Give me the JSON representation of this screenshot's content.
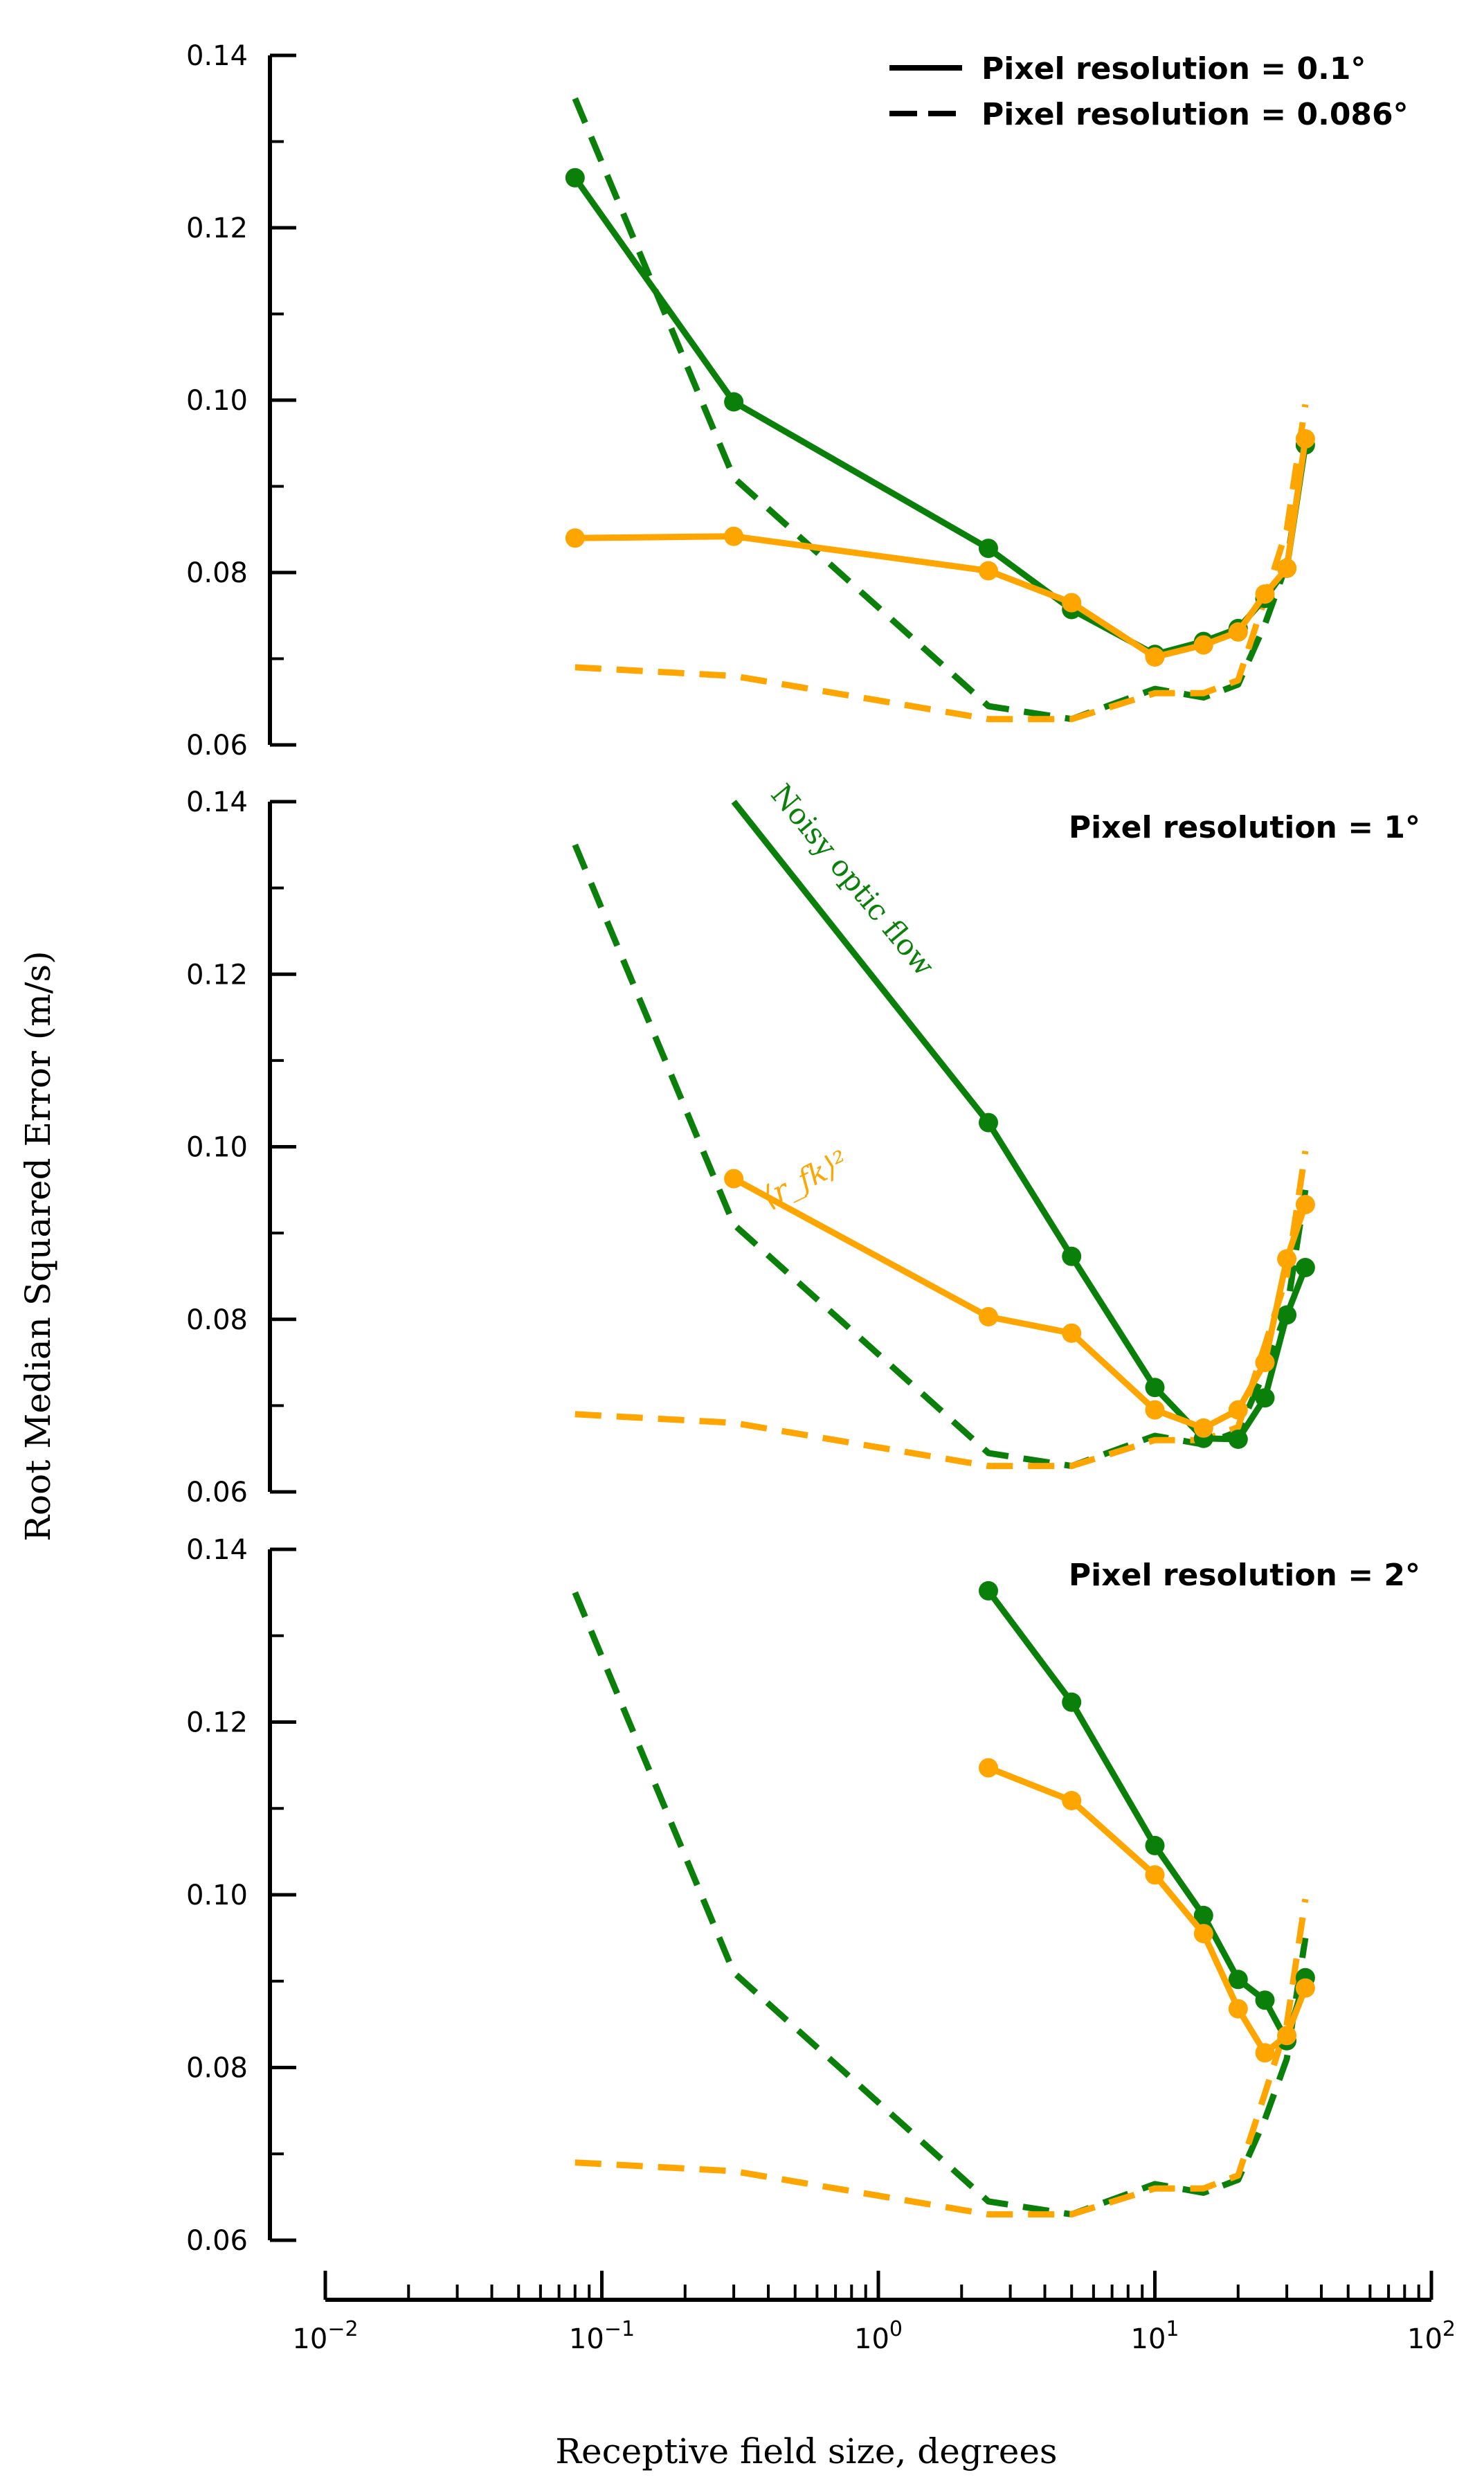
{
  "chart_data": {
    "type": "line",
    "xlabel": "Receptive field size, degrees",
    "ylabel": "Root Median Squared Error (m/s)",
    "xscale": "log",
    "xlim": [
      0.01,
      100
    ],
    "x_ticks": [
      {
        "value": 0.01,
        "base": "10",
        "exp": "−2"
      },
      {
        "value": 0.1,
        "base": "10",
        "exp": "−1"
      },
      {
        "value": 1,
        "base": "10",
        "exp": "0"
      },
      {
        "value": 10,
        "base": "10",
        "exp": "1"
      },
      {
        "value": 100,
        "base": "10",
        "exp": "2"
      }
    ],
    "ylim": [
      0.06,
      0.14
    ],
    "y_ticks": [
      "0.06",
      "0.08",
      "0.10",
      "0.12",
      "0.14"
    ],
    "legend": {
      "placement": "top-right",
      "entries": [
        {
          "label": "Pixel resolution = 0.1°",
          "style": "solid"
        },
        {
          "label": "Pixel resolution = 0.086°",
          "style": "dashed"
        }
      ]
    },
    "colors": {
      "green": "#0a800a",
      "orange": "#ffa500"
    },
    "reference_dashed": {
      "green": {
        "x": [
          0.08,
          0.3,
          2.5,
          5,
          10,
          15,
          20,
          25,
          30,
          35
        ],
        "y": [
          0.135,
          0.091,
          0.0645,
          0.063,
          0.0665,
          0.0655,
          0.067,
          0.074,
          0.081,
          0.095
        ]
      },
      "orange": {
        "x": [
          0.08,
          0.3,
          2.5,
          5,
          10,
          15,
          20,
          25,
          30,
          35
        ],
        "y": [
          0.069,
          0.068,
          0.063,
          0.063,
          0.066,
          0.066,
          0.0675,
          0.077,
          0.085,
          0.0995
        ]
      }
    },
    "panels": [
      {
        "label": "",
        "series": [
          {
            "color": "green",
            "x": [
              0.08,
              0.3,
              2.5,
              5,
              10,
              15,
              20,
              25,
              30,
              35
            ],
            "y": [
              0.1258,
              0.0998,
              0.0828,
              0.0757,
              0.0705,
              0.072,
              0.0735,
              0.077,
              0.0805,
              0.0948
            ]
          },
          {
            "color": "orange",
            "x": [
              0.08,
              0.3,
              2.5,
              5,
              10,
              15,
              20,
              25,
              30,
              35
            ],
            "y": [
              0.084,
              0.0842,
              0.0802,
              0.0765,
              0.0702,
              0.0716,
              0.0731,
              0.0775,
              0.0805,
              0.0955
            ]
          }
        ],
        "annotations": []
      },
      {
        "label": "Pixel resolution = 1°",
        "series": [
          {
            "color": "green",
            "x": [
              0.3,
              2.5,
              5,
              10,
              15,
              20,
              25,
              30,
              35
            ],
            "y": [
              0.14,
              0.1028,
              0.0873,
              0.0721,
              0.0662,
              0.0661,
              0.0709,
              0.0805,
              0.086
            ],
            "markers_from": 1
          },
          {
            "color": "orange",
            "x": [
              0.3,
              2.5,
              5,
              10,
              15,
              20,
              25,
              30,
              35
            ],
            "y": [
              0.0963,
              0.0803,
              0.0784,
              0.0695,
              0.0674,
              0.0695,
              0.075,
              0.087,
              0.0933
            ]
          }
        ],
        "annotations": [
          {
            "text": "Noisy optic flow",
            "color": "green"
          },
          {
            "text": "⟨r_fk⟩²",
            "color": "orange"
          }
        ]
      },
      {
        "label": "Pixel resolution = 2°",
        "series": [
          {
            "color": "green",
            "x": [
              2.5,
              5,
              10,
              15,
              20,
              25,
              30,
              35
            ],
            "y": [
              0.1352,
              0.1223,
              0.1057,
              0.0976,
              0.0902,
              0.0878,
              0.0831,
              0.0904
            ]
          },
          {
            "color": "orange",
            "x": [
              2.5,
              5,
              10,
              15,
              20,
              25,
              30,
              35
            ],
            "y": [
              0.1147,
              0.1109,
              0.1023,
              0.0955,
              0.0868,
              0.0817,
              0.0837,
              0.0892
            ]
          }
        ],
        "annotations": []
      }
    ]
  }
}
